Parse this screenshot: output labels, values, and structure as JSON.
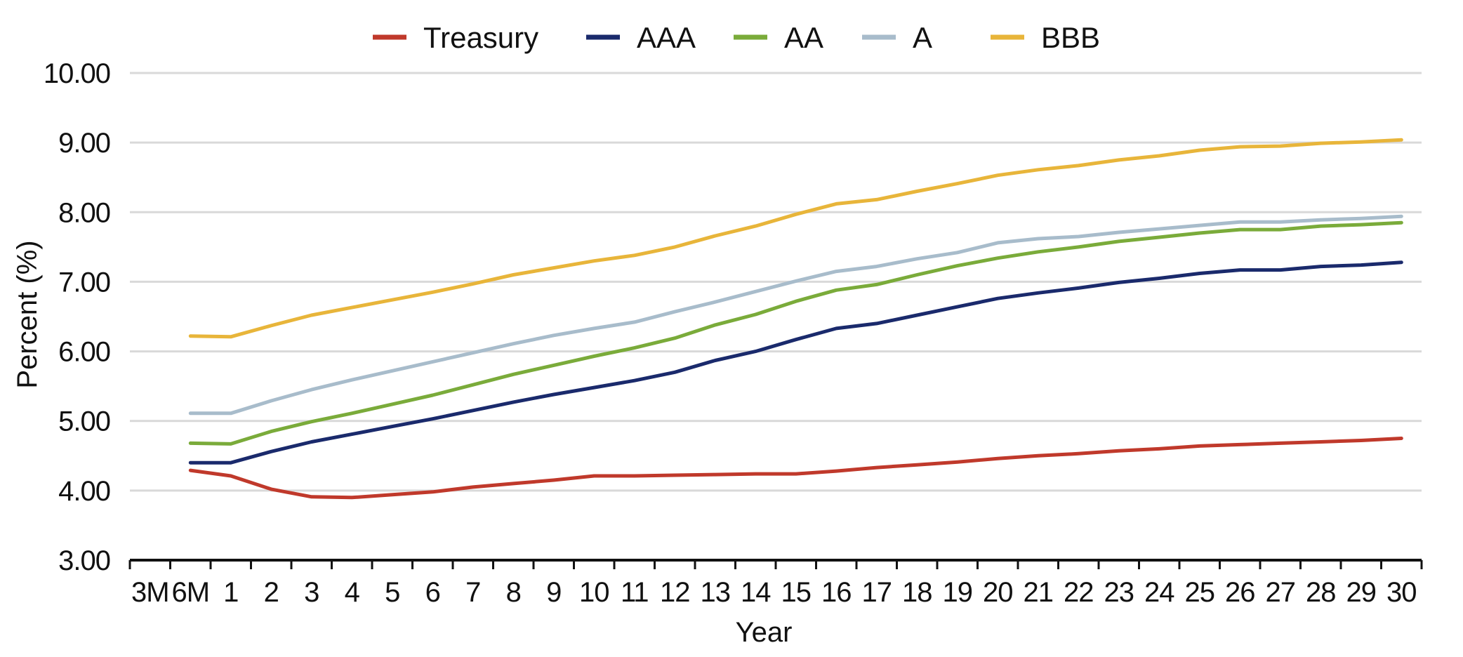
{
  "chart_data": {
    "type": "line",
    "title": "",
    "xlabel": "Year",
    "ylabel": "Percent (%)",
    "ylim": [
      3.0,
      10.0
    ],
    "y_ticks": [
      "10.00",
      "9.00",
      "8.00",
      "7.00",
      "6.00",
      "5.00",
      "4.00",
      "3.00"
    ],
    "y_tick_values": [
      10,
      9,
      8,
      7,
      6,
      5,
      4,
      3
    ],
    "categories": [
      "3M",
      "6M",
      "1",
      "2",
      "3",
      "4",
      "5",
      "6",
      "7",
      "8",
      "9",
      "10",
      "11",
      "12",
      "13",
      "14",
      "15",
      "16",
      "17",
      "18",
      "19",
      "20",
      "21",
      "22",
      "23",
      "24",
      "25",
      "26",
      "27",
      "28",
      "29",
      "30"
    ],
    "grid": true,
    "legend_position": "top",
    "series": [
      {
        "name": "Treasury",
        "color": "#c0392b",
        "values": [
          null,
          4.29,
          4.21,
          4.02,
          3.91,
          3.9,
          3.94,
          3.98,
          4.05,
          4.1,
          4.15,
          4.21,
          4.21,
          4.22,
          4.23,
          4.24,
          4.24,
          4.28,
          4.33,
          4.37,
          4.41,
          4.46,
          4.5,
          4.53,
          4.57,
          4.6,
          4.64,
          4.66,
          4.68,
          4.7,
          4.72,
          4.75
        ]
      },
      {
        "name": "AAA",
        "color": "#1a2a6c",
        "values": [
          null,
          4.4,
          4.4,
          4.56,
          4.7,
          4.81,
          4.92,
          5.03,
          5.15,
          5.27,
          5.38,
          5.48,
          5.58,
          5.7,
          5.87,
          6.0,
          6.17,
          6.33,
          6.4,
          6.52,
          6.64,
          6.76,
          6.84,
          6.91,
          6.99,
          7.05,
          7.12,
          7.17,
          7.17,
          7.22,
          7.24,
          7.28
        ]
      },
      {
        "name": "AA",
        "color": "#7aab3a",
        "values": [
          null,
          4.68,
          4.67,
          4.85,
          4.99,
          5.11,
          5.24,
          5.37,
          5.52,
          5.67,
          5.8,
          5.93,
          6.05,
          6.19,
          6.38,
          6.53,
          6.72,
          6.88,
          6.96,
          7.1,
          7.23,
          7.34,
          7.43,
          7.5,
          7.58,
          7.64,
          7.7,
          7.75,
          7.75,
          7.8,
          7.82,
          7.85
        ]
      },
      {
        "name": "A",
        "color": "#a8bccb",
        "values": [
          null,
          5.11,
          5.11,
          5.29,
          5.45,
          5.59,
          5.72,
          5.85,
          5.98,
          6.11,
          6.23,
          6.33,
          6.42,
          6.57,
          6.71,
          6.86,
          7.01,
          7.15,
          7.22,
          7.33,
          7.42,
          7.56,
          7.62,
          7.65,
          7.71,
          7.76,
          7.81,
          7.86,
          7.86,
          7.89,
          7.91,
          7.94
        ]
      },
      {
        "name": "BBB",
        "color": "#e8b53a",
        "values": [
          null,
          6.22,
          6.21,
          6.37,
          6.52,
          6.63,
          6.74,
          6.85,
          6.97,
          7.1,
          7.2,
          7.3,
          7.38,
          7.5,
          7.66,
          7.8,
          7.97,
          8.12,
          8.18,
          8.3,
          8.41,
          8.53,
          8.61,
          8.67,
          8.75,
          8.81,
          8.89,
          8.94,
          8.95,
          8.99,
          9.01,
          9.04
        ]
      }
    ]
  }
}
